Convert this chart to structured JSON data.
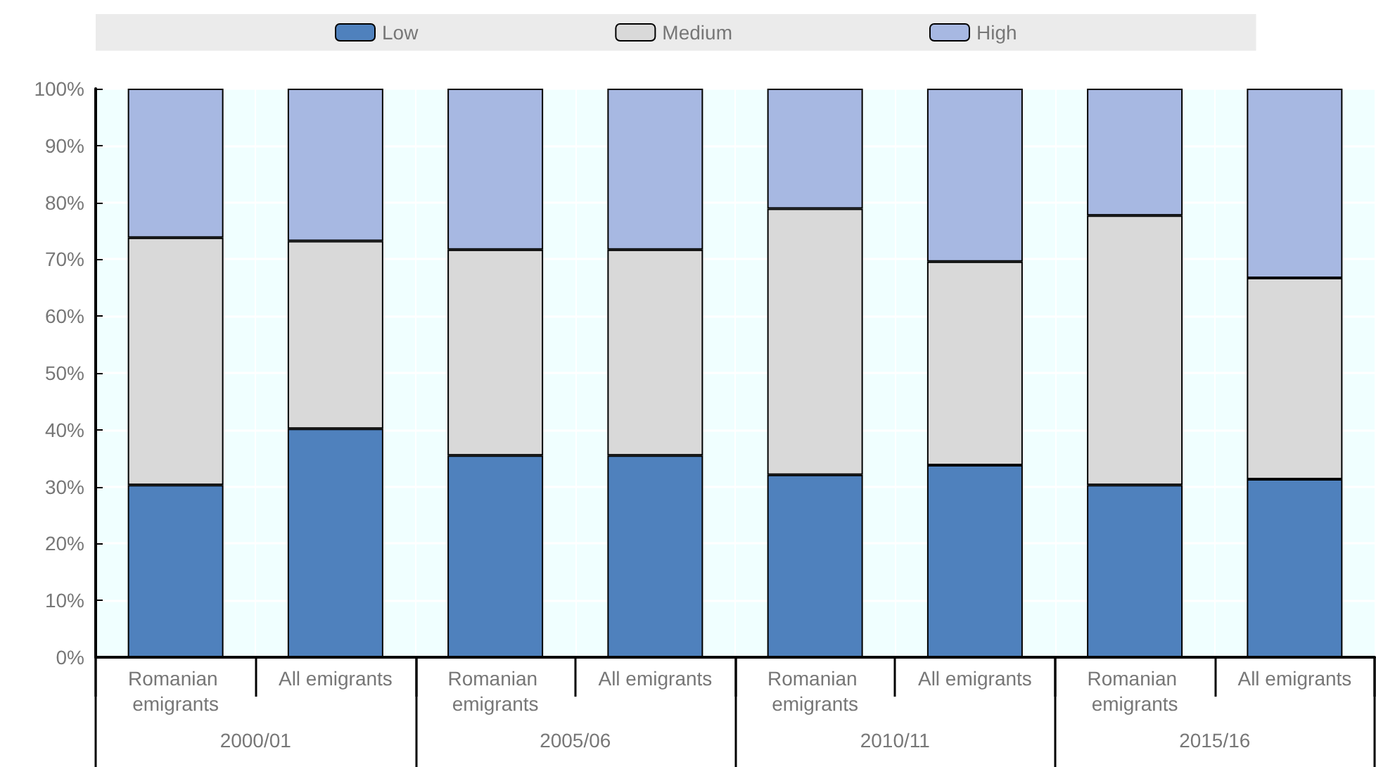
{
  "chart_data": {
    "type": "bar",
    "stacked": true,
    "categories": [
      "Romanian emigrants",
      "All emigrants",
      "Romanian emigrants",
      "All emigrants",
      "Romanian emigrants",
      "All emigrants",
      "Romanian emigrants",
      "All emigrants"
    ],
    "series": [
      {
        "name": "Low",
        "color": "#4f81bd",
        "values": [
          30.3,
          40.2,
          35.5,
          35.5,
          32.1,
          33.8,
          30.3,
          31.3
        ]
      },
      {
        "name": "Medium",
        "color": "#d9d9d9",
        "values": [
          43.5,
          33,
          36.2,
          36.2,
          46.8,
          35.8,
          47.4,
          35.4
        ]
      },
      {
        "name": "High",
        "color": "#a7b8e2",
        "values": [
          26.2,
          26.8,
          28.3,
          28.3,
          21.1,
          30.4,
          22.3,
          33.3
        ]
      }
    ],
    "annotations": [
      "2000/01",
      "2005/06",
      "2010/11",
      "2015/16"
    ],
    "ylim": [
      0,
      100
    ],
    "yticks": [
      {
        "value": 0,
        "label": "0%"
      },
      {
        "value": 10,
        "label": "10%"
      },
      {
        "value": 20,
        "label": "20%"
      },
      {
        "value": 30,
        "label": "30%"
      },
      {
        "value": 40,
        "label": "40%"
      },
      {
        "value": 50,
        "label": "50%"
      },
      {
        "value": 60,
        "label": "60%"
      },
      {
        "value": 70,
        "label": "70%"
      },
      {
        "value": 80,
        "label": "80%"
      },
      {
        "value": 90,
        "label": "90%"
      },
      {
        "value": 100,
        "label": "100%"
      }
    ],
    "grid": true,
    "legend": "top"
  }
}
